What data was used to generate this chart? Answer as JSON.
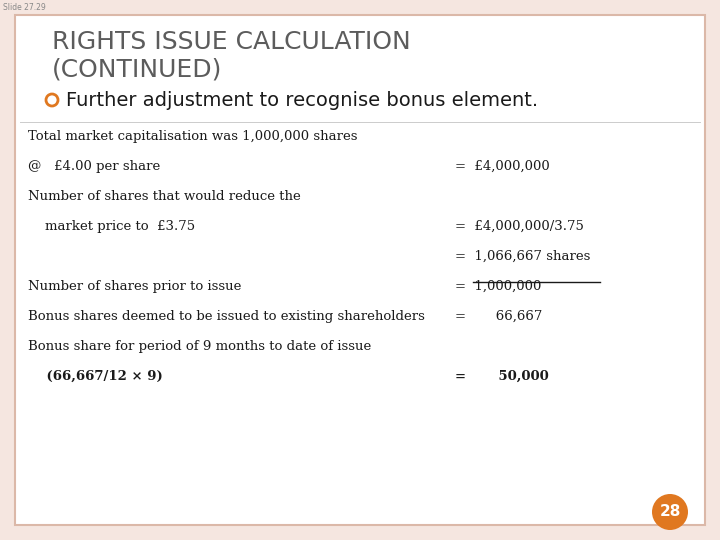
{
  "slide_label": "Slide 27.29",
  "title_line1": "RIGHTS ISSUE CALCULATION",
  "title_line2": "(CONTINUED)",
  "title_color": "#5c5c5c",
  "title_fontsize": 18,
  "bullet_color_fill": "none",
  "bullet_color_edge": "#e07820",
  "bullet_text": "Further adjustment to recognise bonus element.",
  "bullet_fontsize": 14,
  "background_color": "#f5e6e0",
  "content_bg": "#ffffff",
  "page_number": "28",
  "page_num_bg": "#e07820",
  "border_color": "#dbb8a8",
  "text_color": "#1a1a1a",
  "text_fontsize": 9.5,
  "rows": [
    {
      "left": "Total market capitalisation was 1,000,000 shares",
      "right": "",
      "indent": false,
      "bold": false,
      "underline": false
    },
    {
      "left": "@   £4.00 per share",
      "right": "=  £4,000,000",
      "indent": true,
      "bold": false,
      "underline": false
    },
    {
      "left": "Number of shares that would reduce the",
      "right": "",
      "indent": false,
      "bold": false,
      "underline": false
    },
    {
      "left": "    market price to  £3.75",
      "right": "=  £4,000,000/3.75",
      "indent": false,
      "bold": false,
      "underline": false
    },
    {
      "left": "",
      "right": "=  1,066,667 shares",
      "indent": false,
      "bold": false,
      "underline": false
    },
    {
      "left": "Number of shares prior to issue",
      "right": "=  1,000,000",
      "indent": false,
      "bold": false,
      "underline": true
    },
    {
      "left": "Bonus shares deemed to be issued to existing shareholders",
      "right": "=       66,667",
      "indent": false,
      "bold": false,
      "underline": false
    },
    {
      "left": "Bonus share for period of 9 months to date of issue",
      "right": "",
      "indent": false,
      "bold": false,
      "underline": false
    },
    {
      "left": "    (66,667/12 × 9)",
      "right": "=       50,000",
      "indent": false,
      "bold": true,
      "underline": false
    }
  ]
}
